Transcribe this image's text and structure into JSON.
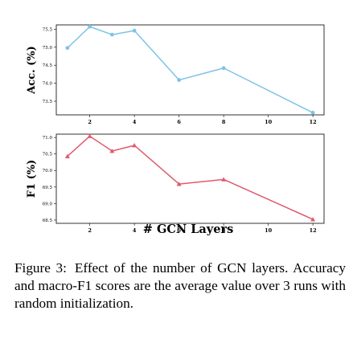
{
  "chart_data": [
    {
      "type": "line",
      "ylabel": "Acc. (%)",
      "x": [
        1,
        2,
        3,
        4,
        6,
        8,
        12
      ],
      "series": [
        {
          "values": [
            74.98,
            75.57,
            75.35,
            75.46,
            74.09,
            74.42,
            73.18
          ],
          "color": "#7ec3e6",
          "marker": "circle"
        }
      ],
      "xlim": [
        0.5,
        12.5
      ],
      "ylim": [
        73.12,
        75.62
      ],
      "xticks": [
        "2",
        "4",
        "6",
        "8",
        "10",
        "12"
      ],
      "yticks": [
        "73.5",
        "74.0",
        "74.5",
        "75.0",
        "75.5"
      ],
      "grid": false
    },
    {
      "type": "line",
      "ylabel": "F1 (%)",
      "xlabel": "# GCN Layers",
      "x": [
        1,
        2,
        3,
        4,
        6,
        8,
        12
      ],
      "series": [
        {
          "values": [
            70.43,
            71.04,
            70.59,
            70.76,
            69.59,
            69.73,
            68.52
          ],
          "color": "#e05a6e",
          "marker": "triangle"
        }
      ],
      "xlim": [
        0.5,
        12.5
      ],
      "ylim": [
        68.4,
        71.1
      ],
      "xticks": [
        "2",
        "4",
        "6",
        "8",
        "10",
        "12"
      ],
      "yticks": [
        "68.5",
        "69.0",
        "69.5",
        "70.0",
        "70.5",
        "71.0"
      ],
      "grid": false
    }
  ],
  "caption": {
    "label": "Figure 3:",
    "text": "Effect of the number of GCN layers. Accuracy and macro-F1 scores are the average value over 3 runs with random initialization."
  }
}
